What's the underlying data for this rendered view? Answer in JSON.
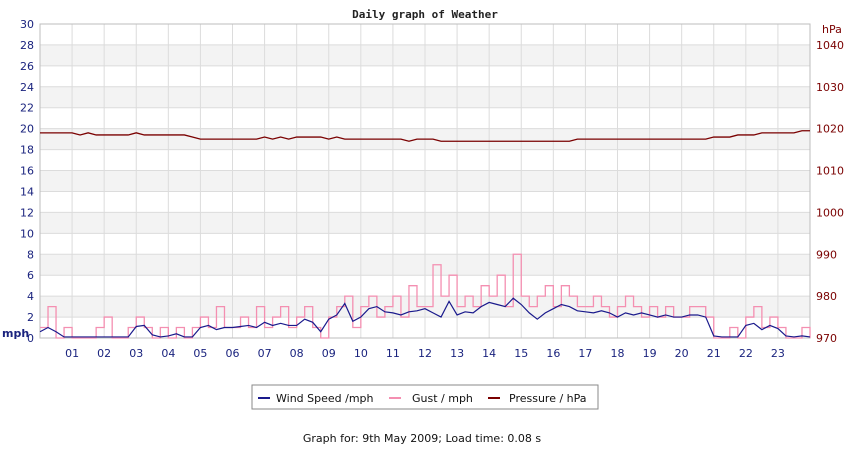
{
  "chart_data": {
    "type": "line",
    "title": "Daily graph of Weather",
    "left_axis": {
      "unit": "mph",
      "range": [
        0,
        30
      ],
      "ticks": [
        "0",
        "2",
        "4",
        "6",
        "8",
        "10",
        "12",
        "14",
        "16",
        "18",
        "20",
        "22",
        "24",
        "26",
        "28",
        "30"
      ]
    },
    "right_axis": {
      "unit": "hPa",
      "range": [
        970,
        1045
      ],
      "ticks": [
        "970",
        "980",
        "990",
        "1000",
        "1010",
        "1020",
        "1030",
        "1040"
      ]
    },
    "x_axis": {
      "range": [
        0,
        24
      ],
      "tick_labels": [
        "01",
        "02",
        "03",
        "04",
        "05",
        "06",
        "07",
        "08",
        "09",
        "10",
        "11",
        "12",
        "13",
        "14",
        "15",
        "16",
        "17",
        "18",
        "19",
        "20",
        "21",
        "22",
        "23"
      ]
    },
    "grid": true,
    "legend_position": "bottom-center",
    "series": [
      {
        "name": "Wind Speed /mph",
        "axis": "left",
        "color": "#1a1a8c",
        "x": [
          0,
          0.25,
          0.5,
          0.75,
          1,
          1.25,
          1.5,
          1.75,
          2,
          2.25,
          2.5,
          2.75,
          3,
          3.25,
          3.5,
          3.75,
          4,
          4.25,
          4.5,
          4.75,
          5,
          5.25,
          5.5,
          5.75,
          6,
          6.25,
          6.5,
          6.75,
          7,
          7.25,
          7.5,
          7.75,
          8,
          8.25,
          8.5,
          8.75,
          9,
          9.25,
          9.5,
          9.75,
          10,
          10.25,
          10.5,
          10.75,
          11,
          11.25,
          11.5,
          11.75,
          12,
          12.25,
          12.5,
          12.75,
          13,
          13.25,
          13.5,
          13.75,
          14,
          14.25,
          14.5,
          14.75,
          15,
          15.25,
          15.5,
          15.75,
          16,
          16.25,
          16.5,
          16.75,
          17,
          17.25,
          17.5,
          17.75,
          18,
          18.25,
          18.5,
          18.75,
          19,
          19.25,
          19.5,
          19.75,
          20,
          20.25,
          20.5,
          20.75,
          21,
          21.25,
          21.5,
          21.75,
          22,
          22.25,
          22.5,
          22.75,
          23,
          23.25,
          23.5,
          23.75,
          24
        ],
        "y": [
          0.6,
          1.0,
          0.6,
          0.1,
          0.1,
          0.1,
          0.1,
          0.1,
          0.1,
          0.1,
          0.1,
          0.1,
          1.1,
          1.2,
          0.3,
          0.1,
          0.2,
          0.4,
          0.1,
          0.1,
          1.0,
          1.2,
          0.8,
          1.0,
          1.0,
          1.1,
          1.2,
          1.0,
          1.5,
          1.2,
          1.4,
          1.2,
          1.2,
          1.8,
          1.5,
          0.6,
          1.8,
          2.2,
          3.3,
          1.6,
          2.0,
          2.8,
          3.0,
          2.5,
          2.4,
          2.2,
          2.5,
          2.6,
          2.8,
          2.4,
          2.0,
          3.5,
          2.2,
          2.5,
          2.4,
          3.0,
          3.4,
          3.2,
          3.0,
          3.8,
          3.2,
          2.4,
          1.8,
          2.4,
          2.8,
          3.2,
          3.0,
          2.6,
          2.5,
          2.4,
          2.6,
          2.4,
          2.0,
          2.4,
          2.2,
          2.4,
          2.2,
          2.0,
          2.2,
          2.0,
          2.0,
          2.2,
          2.2,
          2.0,
          0.2,
          0.1,
          0.1,
          0.1,
          1.2,
          1.4,
          0.8,
          1.2,
          0.9,
          0.2,
          0.1,
          0.2,
          0.1
        ]
      },
      {
        "name": "Gust / mph",
        "axis": "left",
        "color": "#f48fb1",
        "x": [
          0,
          0.25,
          0.5,
          0.75,
          1,
          1.25,
          1.5,
          1.75,
          2,
          2.25,
          2.5,
          2.75,
          3,
          3.25,
          3.5,
          3.75,
          4,
          4.25,
          4.5,
          4.75,
          5,
          5.25,
          5.5,
          5.75,
          6,
          6.25,
          6.5,
          6.75,
          7,
          7.25,
          7.5,
          7.75,
          8,
          8.25,
          8.5,
          8.75,
          9,
          9.25,
          9.5,
          9.75,
          10,
          10.25,
          10.5,
          10.75,
          11,
          11.25,
          11.5,
          11.75,
          12,
          12.25,
          12.5,
          12.75,
          13,
          13.25,
          13.5,
          13.75,
          14,
          14.25,
          14.5,
          14.75,
          15,
          15.25,
          15.5,
          15.75,
          16,
          16.25,
          16.5,
          16.75,
          17,
          17.25,
          17.5,
          17.75,
          18,
          18.25,
          18.5,
          18.75,
          19,
          19.25,
          19.5,
          19.75,
          20,
          20.25,
          20.5,
          20.75,
          21,
          21.25,
          21.5,
          21.75,
          22,
          22.25,
          22.5,
          22.75,
          23,
          23.25,
          23.5,
          23.75,
          24
        ],
        "y": [
          1.0,
          3.0,
          0.0,
          1.0,
          0.0,
          0.0,
          0.0,
          1.0,
          2.0,
          0.0,
          0.0,
          1.0,
          2.0,
          1.0,
          0.0,
          1.0,
          0.0,
          1.0,
          0.0,
          1.0,
          2.0,
          1.0,
          3.0,
          1.0,
          1.0,
          2.0,
          1.0,
          3.0,
          1.0,
          2.0,
          3.0,
          1.0,
          2.0,
          3.0,
          1.0,
          0.0,
          2.0,
          3.0,
          4.0,
          1.0,
          3.0,
          4.0,
          2.0,
          3.0,
          4.0,
          2.0,
          5.0,
          3.0,
          3.0,
          7.0,
          4.0,
          6.0,
          3.0,
          4.0,
          3.0,
          5.0,
          4.0,
          6.0,
          3.0,
          8.0,
          4.0,
          3.0,
          4.0,
          5.0,
          3.0,
          5.0,
          4.0,
          3.0,
          3.0,
          4.0,
          3.0,
          2.0,
          3.0,
          4.0,
          3.0,
          2.0,
          3.0,
          2.0,
          3.0,
          2.0,
          2.0,
          3.0,
          3.0,
          2.0,
          0.0,
          0.0,
          1.0,
          0.0,
          2.0,
          3.0,
          1.0,
          2.0,
          1.0,
          0.0,
          0.0,
          1.0,
          0.0
        ]
      },
      {
        "name": "Pressure / hPa",
        "axis": "right",
        "color": "#7a0000",
        "x": [
          0,
          0.25,
          0.5,
          0.75,
          1,
          1.25,
          1.5,
          1.75,
          2,
          2.25,
          2.5,
          2.75,
          3,
          3.25,
          3.5,
          3.75,
          4,
          4.25,
          4.5,
          4.75,
          5,
          5.25,
          5.5,
          5.75,
          6,
          6.25,
          6.5,
          6.75,
          7,
          7.25,
          7.5,
          7.75,
          8,
          8.25,
          8.5,
          8.75,
          9,
          9.25,
          9.5,
          9.75,
          10,
          10.25,
          10.5,
          10.75,
          11,
          11.25,
          11.5,
          11.75,
          12,
          12.25,
          12.5,
          12.75,
          13,
          13.25,
          13.5,
          13.75,
          14,
          14.25,
          14.5,
          14.75,
          15,
          15.25,
          15.5,
          15.75,
          16,
          16.25,
          16.5,
          16.75,
          17,
          17.25,
          17.5,
          17.75,
          18,
          18.25,
          18.5,
          18.75,
          19,
          19.25,
          19.5,
          19.75,
          20,
          20.25,
          20.5,
          20.75,
          21,
          21.25,
          21.5,
          21.75,
          22,
          22.25,
          22.5,
          22.75,
          23,
          23.25,
          23.5,
          23.75,
          24
        ],
        "y": [
          1019,
          1019,
          1019,
          1019,
          1019,
          1018.5,
          1019,
          1018.5,
          1018.5,
          1018.5,
          1018.5,
          1018.5,
          1019,
          1018.5,
          1018.5,
          1018.5,
          1018.5,
          1018.5,
          1018.5,
          1018,
          1017.5,
          1017.5,
          1017.5,
          1017.5,
          1017.5,
          1017.5,
          1017.5,
          1017.5,
          1018,
          1017.5,
          1018,
          1017.5,
          1018,
          1018,
          1018,
          1018,
          1017.5,
          1018,
          1017.5,
          1017.5,
          1017.5,
          1017.5,
          1017.5,
          1017.5,
          1017.5,
          1017.5,
          1017,
          1017.5,
          1017.5,
          1017.5,
          1017,
          1017,
          1017,
          1017,
          1017,
          1017,
          1017,
          1017,
          1017,
          1017,
          1017,
          1017,
          1017,
          1017,
          1017,
          1017,
          1017,
          1017.5,
          1017.5,
          1017.5,
          1017.5,
          1017.5,
          1017.5,
          1017.5,
          1017.5,
          1017.5,
          1017.5,
          1017.5,
          1017.5,
          1017.5,
          1017.5,
          1017.5,
          1017.5,
          1017.5,
          1018,
          1018,
          1018,
          1018.5,
          1018.5,
          1018.5,
          1019,
          1019,
          1019,
          1019,
          1019,
          1019.5,
          1019.5
        ]
      }
    ]
  },
  "footer": {
    "text": "Graph for: 9th May 2009; Load time: 0.08 s"
  }
}
